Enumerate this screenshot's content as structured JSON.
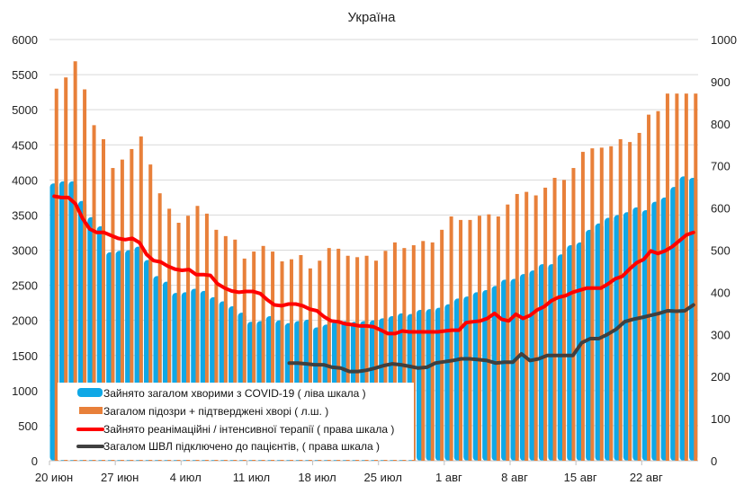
{
  "chart_data": {
    "type": "bar",
    "title": "Україна",
    "xlabel": "",
    "ylabel_left": "",
    "ylabel_right": "",
    "ylim_left": [
      0,
      6000
    ],
    "ylim_right": [
      0,
      1000
    ],
    "yticks_left": [
      "0",
      "500",
      "1000",
      "1500",
      "2000",
      "2500",
      "3000",
      "3500",
      "4000",
      "4500",
      "5000",
      "5500",
      "6000"
    ],
    "yticks_right": [
      "0",
      "100",
      "200",
      "300",
      "400",
      "500",
      "600",
      "700",
      "800",
      "900",
      "1000"
    ],
    "x_tick_labels": [
      {
        "label": "20 июн",
        "index": 0
      },
      {
        "label": "27 июн",
        "index": 7
      },
      {
        "label": "4 июл",
        "index": 14
      },
      {
        "label": "11 июл",
        "index": 21
      },
      {
        "label": "18 июл",
        "index": 28
      },
      {
        "label": "25 июл",
        "index": 35
      },
      {
        "label": "1 авг",
        "index": 42
      },
      {
        "label": "8 авг",
        "index": 49
      },
      {
        "label": "15 авг",
        "index": 56
      },
      {
        "label": "22 авг",
        "index": 63
      }
    ],
    "grid": true,
    "legend_position": "bottom-left",
    "colors": {
      "occupied": "#0fa8e6",
      "suspected": "#e8803a",
      "icu": "#ff0000",
      "ventilator": "#404040"
    },
    "series": [
      {
        "name": "Зайнято загалом хворими з COVID-19 ( ліва шкала )",
        "axis": "left",
        "kind": "bar",
        "values": [
          3950,
          3980,
          3980,
          3700,
          3470,
          3340,
          2970,
          2990,
          3000,
          3050,
          2860,
          2630,
          2550,
          2390,
          2400,
          2450,
          2420,
          2330,
          2270,
          2200,
          2110,
          1980,
          1990,
          2060,
          2000,
          1960,
          1990,
          2010,
          1900,
          1940,
          1990,
          1990,
          1980,
          1990,
          2000,
          2030,
          2060,
          2100,
          2090,
          2150,
          2160,
          2180,
          2230,
          2310,
          2340,
          2400,
          2430,
          2490,
          2580,
          2590,
          2660,
          2710,
          2800,
          2800,
          2940,
          3070,
          3110,
          3290,
          3380,
          3460,
          3500,
          3540,
          3610,
          3570,
          3690,
          3750,
          3900,
          4050,
          4030
        ]
      },
      {
        "name": "Загалом підозри + підтверджені хворі ( л.ш. )",
        "axis": "left",
        "kind": "bar",
        "values": [
          5300,
          5460,
          5690,
          5290,
          4780,
          4580,
          4170,
          4290,
          4440,
          4620,
          4220,
          3810,
          3590,
          3390,
          3490,
          3630,
          3520,
          3290,
          3200,
          3150,
          2880,
          2980,
          3060,
          2980,
          2840,
          2870,
          2930,
          2740,
          2850,
          3030,
          3020,
          2920,
          2900,
          2920,
          2850,
          2990,
          3110,
          3030,
          3070,
          3130,
          3110,
          3290,
          3480,
          3430,
          3430,
          3490,
          3510,
          3480,
          3650,
          3800,
          3830,
          3780,
          3890,
          4030,
          4000,
          4170,
          4400,
          4450,
          4460,
          4480,
          4580,
          4540,
          4670,
          4930,
          4980,
          5230,
          5230,
          5230,
          5230
        ]
      },
      {
        "name": "Зайнято реанімаційні / інтенсивної терапії ( права шкала )",
        "axis": "right",
        "kind": "line",
        "values": [
          628,
          625,
          625,
          610,
          575,
          550,
          542,
          542,
          535,
          528,
          525,
          528,
          518,
          490,
          475,
          472,
          462,
          455,
          452,
          454,
          442,
          442,
          440,
          420,
          410,
          403,
          400,
          402,
          402,
          397,
          382,
          370,
          368,
          372,
          372,
          368,
          360,
          356,
          342,
          332,
          330,
          325,
          323,
          320,
          320,
          318,
          310,
          302,
          302,
          308,
          306,
          306,
          306,
          306,
          306,
          308,
          310,
          310,
          328,
          330,
          332,
          338,
          350,
          336,
          332,
          348,
          338,
          345,
          358,
          366,
          380,
          388,
          392,
          400,
          405,
          410,
          410,
          410,
          420,
          432,
          438,
          455,
          470,
          478,
          498,
          492,
          498,
          508,
          522,
          536,
          542
        ]
      },
      {
        "name": "Загалом ШВЛ  підключено до пацієнтів, ( права шкала )",
        "axis": "right",
        "kind": "line",
        "start_index": 25,
        "values": [
          232,
          232,
          230,
          228,
          228,
          222,
          220,
          212,
          212,
          215,
          220,
          226,
          230,
          228,
          224,
          220,
          222,
          232,
          235,
          238,
          242,
          242,
          240,
          238,
          232,
          234,
          234,
          254,
          238,
          242,
          250,
          250,
          250,
          250,
          280,
          290,
          290,
          300,
          312,
          330,
          336,
          340,
          345,
          350,
          356,
          355,
          356,
          370
        ]
      }
    ]
  }
}
